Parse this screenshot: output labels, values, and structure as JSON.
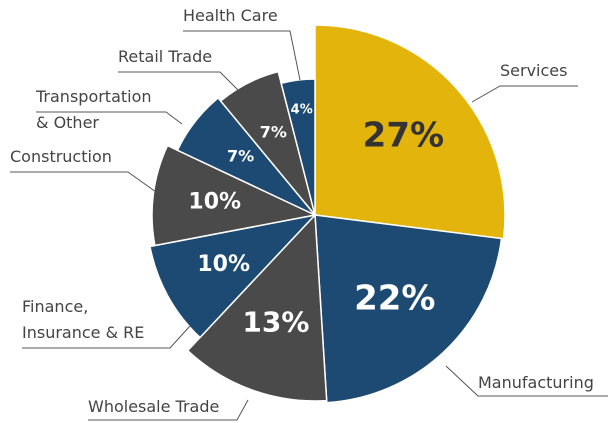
{
  "chart_data": {
    "type": "pie",
    "categories": [
      "Services",
      "Manufacturing",
      "Wholesale Trade",
      "Finance,\nInsurance & RE",
      "Construction",
      "Transportation\n& Other",
      "Retail Trade",
      "Health Care"
    ],
    "values": [
      27,
      22,
      13,
      10,
      10,
      7,
      7,
      4
    ],
    "value_labels": [
      "27%",
      "22%",
      "13%",
      "10%",
      "10%",
      "7%",
      "7%",
      "4%"
    ],
    "colors": [
      "#e3b50c",
      "#1d4a72",
      "#4a4a4a",
      "#1d4a72",
      "#4a4a4a",
      "#1d4a72",
      "#4a4a4a",
      "#1d4a72"
    ]
  }
}
